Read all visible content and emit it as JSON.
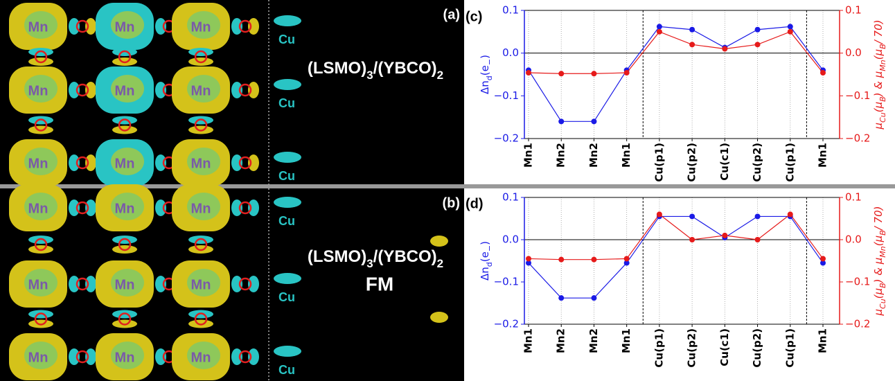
{
  "figure": {
    "panels": [
      {
        "label": "(a)",
        "formula": [
          "(LSMO)",
          "3",
          "/(YBCO)",
          "2"
        ],
        "mn_labels": [
          "Mn",
          "Mn",
          "Mn",
          "Mn",
          "Mn",
          "Mn",
          "Mn",
          "Mn",
          "Mn"
        ],
        "cu_labels": [
          "Cu",
          "Cu",
          "Cu"
        ]
      },
      {
        "label": "(b)",
        "formula": [
          "(LSMO)",
          "3",
          "/(YBCO)",
          "2"
        ],
        "state": "FM",
        "mn_labels": [
          "Mn",
          "Mn",
          "Mn",
          "Mn",
          "Mn",
          "Mn",
          "Mn",
          "Mn",
          "Mn"
        ],
        "cu_labels": [
          "Cu",
          "Cu",
          "Cu"
        ]
      }
    ]
  },
  "chart_data": [
    {
      "type": "line",
      "panel_label": "(c)",
      "ylabel": [
        "Δn",
        "d",
        "(e",
        "−",
        ")"
      ],
      "y2label": [
        "μ",
        "Cu",
        "(μ",
        "B",
        ") & μ",
        "Mn",
        "(μ",
        "B",
        "/ 70)"
      ],
      "categories": [
        "Mn1",
        "Mn2",
        "Mn2",
        "Mn1",
        "Cu(p1)",
        "Cu(p2)",
        "Cu(c1)",
        "Cu(p2)",
        "Cu(p1)",
        "Mn1"
      ],
      "series": [
        {
          "color": "#1a1ae6",
          "values": [
            -0.04,
            -0.16,
            -0.16,
            -0.04,
            0.062,
            0.055,
            0.013,
            0.055,
            0.062,
            -0.04
          ]
        },
        {
          "color": "#e61a1a",
          "axis": "y2",
          "values": [
            -0.046,
            -0.048,
            -0.048,
            -0.046,
            0.05,
            0.02,
            0.01,
            0.02,
            0.05,
            -0.046
          ]
        }
      ],
      "ylim": [
        -0.2,
        0.1
      ],
      "yticks": [
        {
          "value": -0.2,
          "label": "−0.2"
        },
        {
          "value": -0.1,
          "label": "−0.1"
        },
        {
          "value": 0.0,
          "label": "0.0"
        },
        0.1
      ],
      "y2lim": [
        -0.2,
        0.1
      ],
      "y2ticks": [
        {
          "value": -0.2,
          "label": "−0.2"
        },
        {
          "value": -0.1,
          "label": "−0.1"
        },
        {
          "value": 0.0,
          "label": "0.0"
        },
        0.1
      ],
      "grid": true
    },
    {
      "type": "line",
      "panel_label": "(d)",
      "ylabel": [
        "Δn",
        "d",
        "(e",
        "−",
        ")"
      ],
      "y2label": [
        "μ",
        "Cu",
        "(μ",
        "B",
        ") & μ",
        "Mn",
        "(μ",
        "B",
        "/ 70)"
      ],
      "categories": [
        "Mn1",
        "Mn2",
        "Mn2",
        "Mn1",
        "Cu(p1)",
        "Cu(p2)",
        "Cu(c1)",
        "Cu(p2)",
        "Cu(p1)",
        "Mn1"
      ],
      "series": [
        {
          "color": "#1a1ae6",
          "values": [
            -0.055,
            -0.138,
            -0.138,
            -0.055,
            0.055,
            0.055,
            0.005,
            0.055,
            0.055,
            -0.055
          ]
        },
        {
          "color": "#e61a1a",
          "axis": "y2",
          "values": [
            -0.045,
            -0.047,
            -0.047,
            -0.045,
            0.06,
            0.0,
            0.01,
            0.0,
            0.06,
            -0.045
          ]
        }
      ],
      "ylim": [
        -0.2,
        0.1
      ],
      "yticks": [
        {
          "value": -0.2,
          "label": "−0.2"
        },
        {
          "value": -0.1,
          "label": "−0.1"
        },
        {
          "value": 0.0,
          "label": "0.0"
        },
        0.1
      ],
      "y2lim": [
        -0.2,
        0.1
      ],
      "y2ticks": [
        {
          "value": -0.2,
          "label": "−0.2"
        },
        {
          "value": -0.1,
          "label": "−0.1"
        },
        {
          "value": 0.0,
          "label": "0.0"
        },
        0.1
      ],
      "grid": true
    }
  ]
}
